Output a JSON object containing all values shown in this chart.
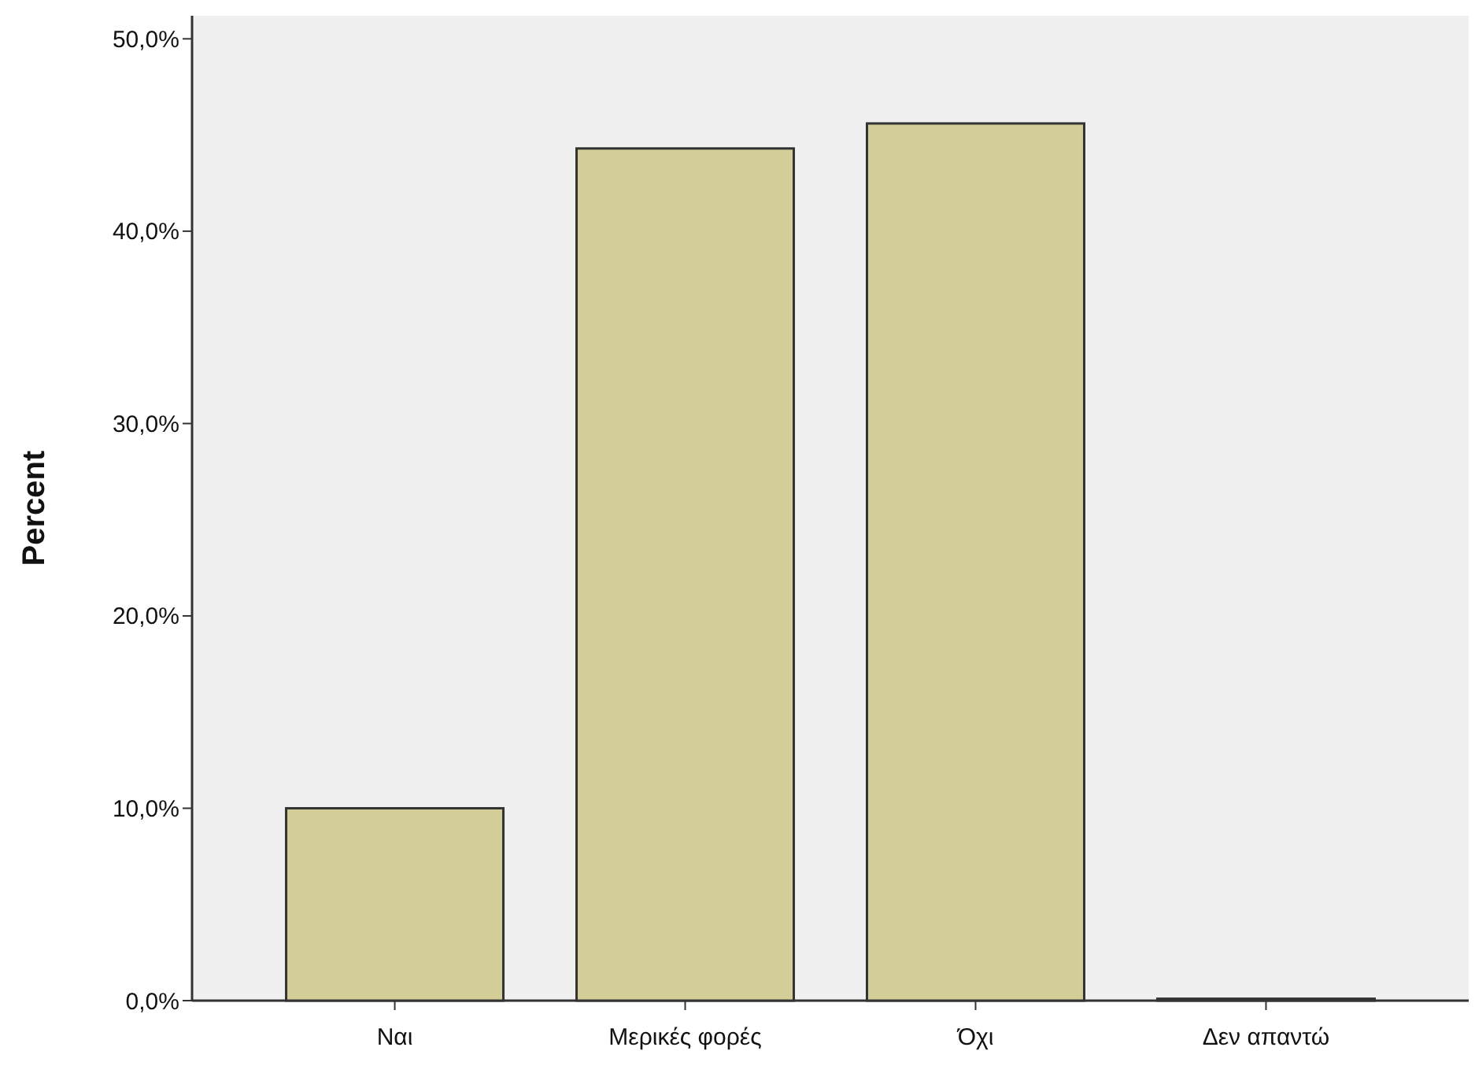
{
  "chart_data": {
    "type": "bar",
    "ylabel": "Percent",
    "categories": [
      "Ναι",
      "Μερικές φορές",
      "Όχι",
      "Δεν απαντώ"
    ],
    "values": [
      10.0,
      44.3,
      45.6,
      0.1
    ],
    "color": "#d3ce97",
    "ylim": [
      0,
      51.2
    ],
    "yticks": [
      {
        "value": 0,
        "label": "0,0%"
      },
      {
        "value": 10,
        "label": "10,0%"
      },
      {
        "value": 20,
        "label": "20,0%"
      },
      {
        "value": 30,
        "label": "30,0%"
      },
      {
        "value": 40,
        "label": "40,0%"
      },
      {
        "value": 50,
        "label": "50,0%"
      }
    ],
    "grid": false
  }
}
